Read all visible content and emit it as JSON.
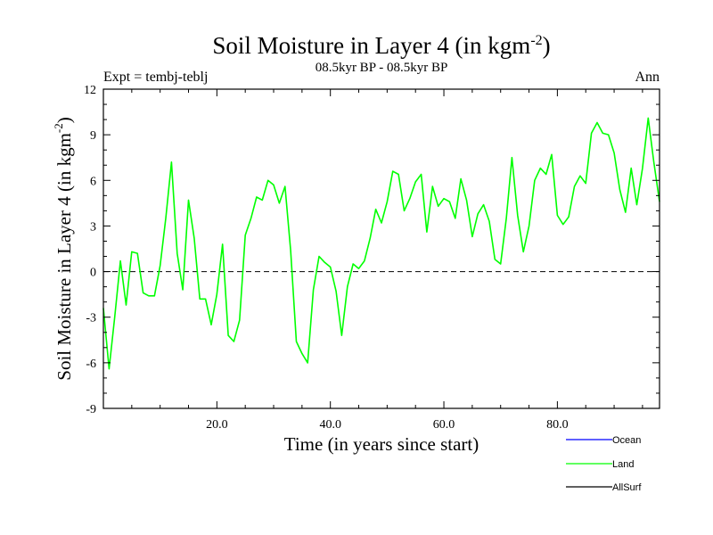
{
  "chart_data": {
    "type": "line",
    "title": "Soil Moisture in Layer 4 (in kgm",
    "title_sup": "-2",
    "title_close": ")",
    "subtitle": "08.5kyr BP - 08.5kyr BP",
    "left_label": "Expt = tembj-teblj",
    "right_label": "Ann",
    "xlabel": "Time (in years since start)",
    "ylabel": "Soil Moisture in Layer 4 (in kgm",
    "ylabel_sup": "-2",
    "ylabel_close": ")",
    "xlim": [
      0,
      98
    ],
    "ylim": [
      -9,
      12
    ],
    "x_ticks": [
      20,
      40,
      60,
      80
    ],
    "x_tick_labels": [
      "20.0",
      "40.0",
      "60.0",
      "80.0"
    ],
    "y_ticks": [
      -9,
      -6,
      -3,
      0,
      3,
      6,
      9,
      12
    ],
    "y_tick_labels": [
      "-9",
      "-6",
      "-3",
      "0",
      "3",
      "6",
      "9",
      "12"
    ],
    "zero_line": true,
    "legend": [
      {
        "name": "Ocean",
        "color": "#0000ff"
      },
      {
        "name": "Land",
        "color": "#00ff00"
      },
      {
        "name": "AllSurf",
        "color": "#000000"
      }
    ],
    "series": [
      {
        "name": "Land",
        "color": "#00ff00",
        "x": [
          0,
          1,
          2,
          3,
          4,
          5,
          6,
          7,
          8,
          9,
          10,
          11,
          12,
          13,
          14,
          15,
          16,
          17,
          18,
          19,
          20,
          21,
          22,
          23,
          24,
          25,
          26,
          27,
          28,
          29,
          30,
          31,
          32,
          33,
          34,
          35,
          36,
          37,
          38,
          39,
          40,
          41,
          42,
          43,
          44,
          45,
          46,
          47,
          48,
          49,
          50,
          51,
          52,
          53,
          54,
          55,
          56,
          57,
          58,
          59,
          60,
          61,
          62,
          63,
          64,
          65,
          66,
          67,
          68,
          69,
          70,
          71,
          72,
          73,
          74,
          75,
          76,
          77,
          78,
          79,
          80,
          81,
          82,
          83,
          84,
          85,
          86,
          87,
          88,
          89,
          90,
          91,
          92,
          93,
          94,
          95,
          96,
          97,
          98
        ],
        "values": [
          -2.4,
          -6.4,
          -3.0,
          0.7,
          -2.2,
          1.3,
          1.2,
          -1.4,
          -1.6,
          -1.6,
          0.4,
          3.5,
          7.2,
          1.2,
          -1.2,
          4.7,
          2.2,
          -1.8,
          -1.8,
          -3.5,
          -1.5,
          1.8,
          -4.2,
          -4.6,
          -3.2,
          2.4,
          3.5,
          4.9,
          4.7,
          6.0,
          5.7,
          4.5,
          5.6,
          1.4,
          -4.6,
          -5.4,
          -6.0,
          -1.2,
          1.0,
          0.6,
          0.3,
          -1.3,
          -4.2,
          -1.0,
          0.5,
          0.2,
          0.7,
          2.2,
          4.1,
          3.2,
          4.6,
          6.6,
          6.4,
          4.0,
          4.8,
          5.9,
          6.4,
          2.6,
          5.6,
          4.3,
          4.8,
          4.6,
          3.5,
          6.1,
          4.7,
          2.3,
          3.8,
          4.4,
          3.3,
          0.8,
          0.5,
          3.5,
          7.5,
          3.7,
          1.3,
          3.0,
          6.0,
          6.8,
          6.4,
          7.7,
          3.7,
          3.1,
          3.6,
          5.6,
          6.3,
          5.8,
          9.1,
          9.8,
          9.1,
          9.0,
          7.8,
          5.4,
          3.9,
          6.8,
          4.4,
          6.8,
          10.1,
          7.2,
          4.6
        ]
      }
    ]
  }
}
